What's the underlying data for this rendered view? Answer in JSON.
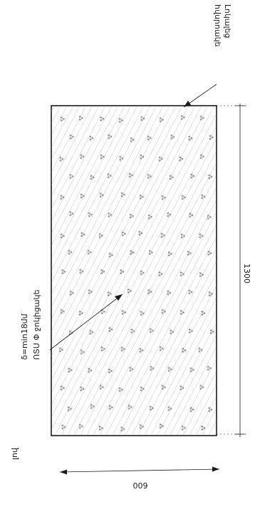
{
  "drawing": {
    "width_dimension": "1300",
    "thickness_dimension": "600",
    "top_annotation": {
      "line1": "Լոկալեց",
      "line2": "հվսրոակե"
    },
    "bottom_annotation": {
      "line1": "ՈՏՍ Փ ջոկիցակե",
      "line2": "δ=min18մմ",
      "line3": "լով"
    },
    "colors": {
      "outline": "#1a1a1a",
      "hatch": "#8a8a8a",
      "stipple": "#6a6a6a"
    }
  }
}
